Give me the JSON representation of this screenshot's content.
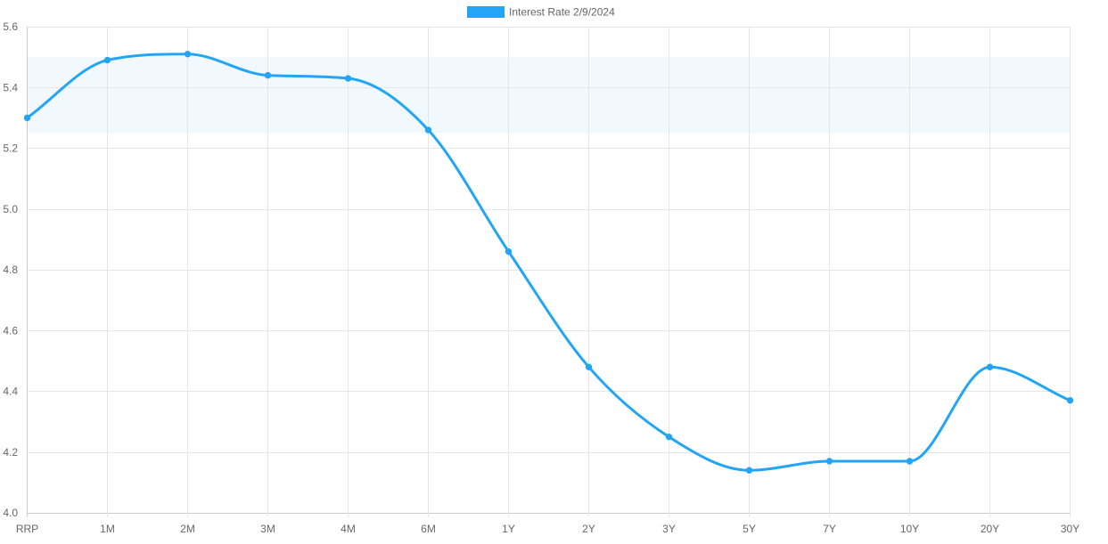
{
  "chart_data": {
    "type": "line",
    "title": "",
    "xlabel": "",
    "ylabel": "",
    "categories": [
      "RRP",
      "1M",
      "2M",
      "3M",
      "4M",
      "6M",
      "1Y",
      "2Y",
      "3Y",
      "5Y",
      "7Y",
      "10Y",
      "20Y",
      "30Y"
    ],
    "series": [
      {
        "name": "Interest Rate 2/9/2024",
        "values": [
          5.3,
          5.49,
          5.51,
          5.44,
          5.43,
          5.26,
          4.86,
          4.48,
          4.25,
          4.14,
          4.17,
          4.17,
          4.48,
          4.37
        ],
        "color": "#22a5f7"
      }
    ],
    "ylim": [
      4.0,
      5.6
    ],
    "yticks": [
      "4.0",
      "4.2",
      "4.4",
      "4.6",
      "4.8",
      "5.0",
      "5.2",
      "5.4",
      "5.6"
    ],
    "band": {
      "from": 5.25,
      "to": 5.5,
      "color": "#f2f9fe"
    },
    "grid": true,
    "legend": "top-center",
    "colors": {
      "grid": "#e6e6e6",
      "axis": "#cccccc",
      "tick_text": "#666666"
    }
  }
}
